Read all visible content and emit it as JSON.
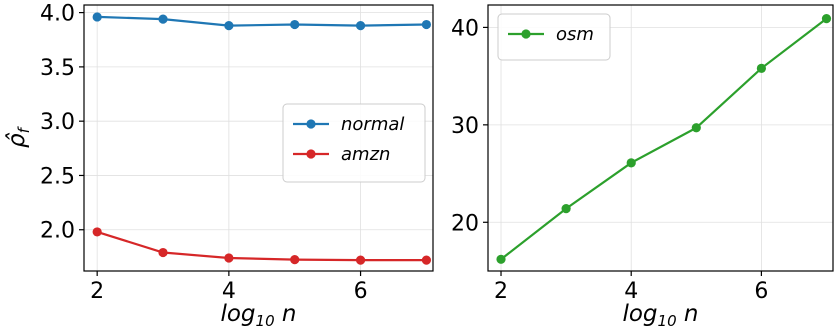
{
  "chart_data": [
    {
      "type": "line",
      "xlabel_base": "log",
      "xlabel_sub": "10",
      "xlabel_var": "n",
      "ylabel_main": "ρ̂",
      "ylabel_sub": "f",
      "x": [
        2,
        3,
        4,
        5,
        6,
        7
      ],
      "xticks": [
        2,
        4,
        6
      ],
      "xlim": [
        1.8,
        7.1
      ],
      "yticks": [
        2.0,
        2.5,
        3.0,
        3.5,
        4.0
      ],
      "ytick_labels": [
        "2.0",
        "2.5",
        "3.0",
        "3.5",
        "4.0"
      ],
      "ylim": [
        1.62,
        4.07
      ],
      "grid": true,
      "legend_position": "center-right",
      "series": [
        {
          "name": "normal",
          "color": "#1f77b4",
          "values": [
            3.96,
            3.94,
            3.88,
            3.89,
            3.88,
            3.89
          ]
        },
        {
          "name": "amzn",
          "color": "#d62728",
          "values": [
            1.98,
            1.79,
            1.74,
            1.725,
            1.72,
            1.72
          ]
        }
      ]
    },
    {
      "type": "line",
      "xlabel_base": "log",
      "xlabel_sub": "10",
      "xlabel_var": "n",
      "x": [
        2,
        3,
        4,
        5,
        6,
        7
      ],
      "xticks": [
        2,
        4,
        6
      ],
      "xlim": [
        1.8,
        7.1
      ],
      "yticks": [
        20,
        30,
        40
      ],
      "ytick_labels": [
        "20",
        "30",
        "40"
      ],
      "ylim": [
        15.0,
        42.3
      ],
      "grid": true,
      "legend_position": "top-left",
      "series": [
        {
          "name": "osm",
          "color": "#2ca02c",
          "values": [
            16.2,
            21.4,
            26.1,
            29.7,
            35.8,
            40.9
          ]
        }
      ]
    }
  ]
}
